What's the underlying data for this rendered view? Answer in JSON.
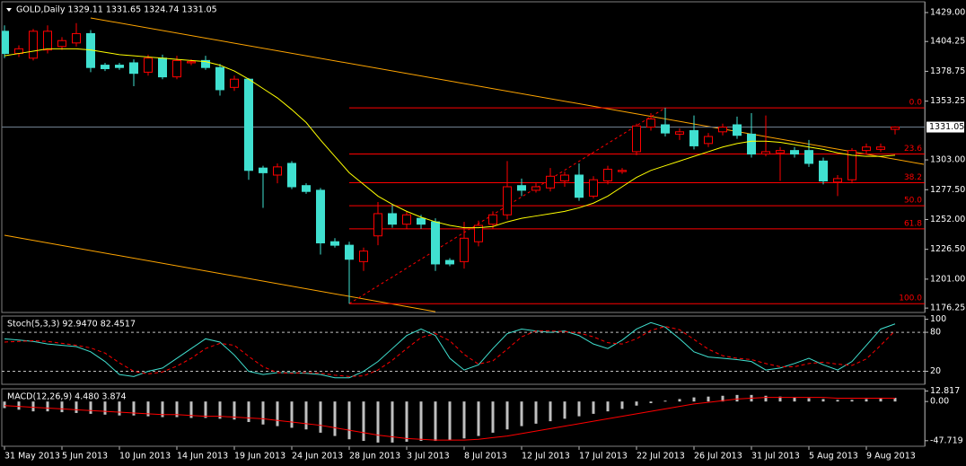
{
  "chart_data": [
    {
      "type": "candlestick",
      "title": "GOLD,Daily  1329.11 1331.65 1324.74 1331.05",
      "categories": [
        "31 May 2013",
        null,
        null,
        null,
        "5 Jun 2013",
        null,
        null,
        null,
        "10 Jun 2013",
        null,
        null,
        null,
        "14 Jun 2013",
        null,
        null,
        null,
        "19 Jun 2013",
        null,
        null,
        null,
        "24 Jun 2013",
        null,
        null,
        null,
        "28 Jun 2013",
        null,
        null,
        null,
        "3 Jul 2013",
        null,
        null,
        null,
        "8 Jul 2013",
        null,
        null,
        null,
        "12 Jul 2013",
        null,
        null,
        null,
        "17 Jul 2013",
        null,
        null,
        null,
        "22 Jul 2013",
        null,
        null,
        null,
        "26 Jul 2013",
        null,
        null,
        null,
        "31 Jul 2013",
        null,
        null,
        null,
        "5 Aug 2013",
        null,
        null,
        null,
        "9 Aug 2013",
        null,
        null
      ],
      "open": [
        1413,
        1394,
        1390,
        1397,
        1400,
        1403,
        1411,
        1384,
        1384,
        1386,
        1378,
        1390,
        1374,
        1386,
        1388,
        1382,
        1365,
        1372,
        1296,
        1290,
        1300,
        1281,
        1277,
        1233,
        1230,
        1216,
        1238,
        1257,
        1248,
        1253,
        1250,
        1217,
        1216,
        1233,
        1248,
        1256,
        1281,
        1277,
        1279,
        1285,
        1290,
        1272,
        1285,
        1293,
        1310,
        1331,
        1333,
        1325,
        1328,
        1317,
        1327,
        1333,
        1325,
        1308,
        1309,
        1311,
        1311,
        1302,
        1284,
        1286,
        1311,
        1312,
        1329.11
      ],
      "high": [
        1418,
        1401,
        1415,
        1418,
        1408,
        1420,
        1414,
        1386,
        1386,
        1389,
        1393,
        1393,
        1392,
        1389,
        1392,
        1385,
        1375,
        1373,
        1298,
        1300,
        1302,
        1283,
        1279,
        1236,
        1233,
        1228,
        1267,
        1265,
        1259,
        1256,
        1253,
        1219,
        1250,
        1251,
        1259,
        1302,
        1287,
        1283,
        1296,
        1293,
        1300,
        1289,
        1298,
        1296,
        1334,
        1343,
        1347.5,
        1330,
        1341,
        1326,
        1334,
        1340,
        1343,
        1341,
        1314,
        1314,
        1320,
        1305,
        1290,
        1313,
        1317,
        1317,
        1331.65
      ],
      "low": [
        1390,
        1391,
        1388,
        1394,
        1397,
        1400,
        1378,
        1379,
        1380,
        1366,
        1375,
        1372,
        1372,
        1384,
        1380,
        1358,
        1362,
        1286,
        1262,
        1283,
        1278,
        1274,
        1222,
        1228,
        1180,
        1208,
        1230,
        1245,
        1244,
        1244,
        1208,
        1212,
        1210,
        1229,
        1244,
        1252,
        1272,
        1275,
        1276,
        1280,
        1268,
        1270,
        1282,
        1291,
        1307,
        1328,
        1323,
        1320,
        1312,
        1314,
        1324,
        1321,
        1305,
        1306,
        1285,
        1305,
        1297,
        1282,
        1272,
        1283,
        1308,
        1310,
        1324.74
      ],
      "close": [
        1394,
        1398,
        1413,
        1413,
        1405,
        1411,
        1382,
        1381,
        1382,
        1377,
        1390,
        1374,
        1388,
        1387,
        1382,
        1363,
        1372,
        1294,
        1292,
        1297,
        1280,
        1276,
        1232,
        1230,
        1218,
        1225,
        1257,
        1248,
        1256,
        1248,
        1214,
        1214,
        1236,
        1247,
        1256,
        1280,
        1277,
        1280,
        1289,
        1290,
        1271,
        1286,
        1295,
        1294,
        1332,
        1338,
        1326,
        1327,
        1315,
        1323,
        1331,
        1324,
        1308,
        1310,
        1311,
        1308,
        1300,
        1285,
        1287,
        1311,
        1314,
        1314,
        1331.05
      ],
      "up_color": "#ff0000",
      "down_color": "#40e0d0",
      "series": [
        {
          "color": "#ffff00",
          "values": [
            1392,
            1394,
            1396,
            1398,
            1398,
            1398,
            1397,
            1395,
            1393,
            1392,
            1391,
            1390,
            1389,
            1388,
            1387,
            1384,
            1379,
            1372,
            1364,
            1356,
            1346,
            1335,
            1320,
            1306,
            1292,
            1282,
            1272,
            1265,
            1259,
            1254,
            1250,
            1247,
            1245,
            1245,
            1246,
            1250,
            1253,
            1255,
            1257,
            1259,
            1262,
            1266,
            1272,
            1280,
            1288,
            1294,
            1298,
            1302,
            1306,
            1310,
            1314,
            1317,
            1319,
            1319,
            1318,
            1316,
            1314,
            1312,
            1309,
            1307,
            1306,
            1306,
            1307
          ]
        }
      ],
      "trendlines": [
        {
          "color": "#ffa500",
          "x": [
            6,
            64
          ],
          "y": [
            1424.4,
            1299.2
          ]
        },
        {
          "color": "#ffa500",
          "x": [
            0,
            30
          ],
          "y": [
            1238.5,
            1173.2
          ]
        }
      ],
      "fibo": {
        "color": "#ff0000",
        "x": [
          24,
          46
        ],
        "y": [
          1180,
          1347.5
        ],
        "levels": [
          {
            "value": 1347.5,
            "label": "0.0"
          },
          {
            "value": 1308,
            "label": "23.6"
          },
          {
            "value": 1283.5,
            "label": "38.2"
          },
          {
            "value": 1263.75,
            "label": "50.0"
          },
          {
            "value": 1244,
            "label": "61.8"
          },
          {
            "value": 1180,
            "label": "100.0"
          }
        ]
      },
      "price_line": 1331.05,
      "ylim": [
        1172.5,
        1438.2
      ],
      "yticks": [
        {
          "value": 1429,
          "label": "1429.00"
        },
        1404.25,
        1378.75,
        1353.25,
        {
          "value": 1303,
          "label": "1303.00"
        },
        {
          "value": 1277.5,
          "label": "1277.50"
        },
        {
          "value": 1252,
          "label": "1252.00"
        },
        {
          "value": 1226.5,
          "label": "1226.50"
        },
        {
          "value": 1201,
          "label": "1201.00"
        },
        1176.25
      ]
    },
    {
      "type": "line",
      "title": "Stoch(5,3,3) 92.9470 82.4517",
      "series": [
        {
          "color": "#40e0d0",
          "values": [
            70,
            68,
            66,
            62,
            60,
            58,
            50,
            35,
            15,
            12,
            20,
            25,
            40,
            55,
            70,
            65,
            45,
            20,
            15,
            18,
            18,
            17,
            15,
            10,
            10,
            20,
            35,
            55,
            75,
            85,
            75,
            40,
            22,
            30,
            55,
            78,
            85,
            82,
            80,
            82,
            75,
            62,
            55,
            68,
            85,
            95,
            88,
            70,
            50,
            42,
            40,
            38,
            35,
            22,
            25,
            32,
            40,
            30,
            22,
            35,
            60,
            85,
            92.947
          ]
        },
        {
          "color": "#ff0000",
          "dashed": true,
          "values": [
            65,
            66,
            67,
            66,
            63,
            60,
            56,
            48,
            33,
            20,
            16,
            19,
            28,
            40,
            55,
            63,
            60,
            43,
            27,
            18,
            17,
            18,
            17,
            14,
            12,
            13,
            22,
            37,
            55,
            72,
            78,
            67,
            46,
            31,
            36,
            54,
            73,
            82,
            82,
            81,
            79,
            73,
            64,
            62,
            70,
            83,
            89,
            84,
            69,
            54,
            44,
            40,
            38,
            32,
            27,
            27,
            32,
            34,
            31,
            29,
            39,
            60,
            82.4517
          ]
        }
      ],
      "levels": [
        80,
        20
      ],
      "ylim": [
        0,
        105
      ],
      "yticks": [
        100,
        80,
        20
      ]
    },
    {
      "type": "bar",
      "title": "MACD(12,26,9) 4.480 3.874",
      "values": [
        -8,
        -10,
        -12,
        -12,
        -13,
        -14,
        -15,
        -16,
        -17,
        -17,
        -18,
        -19,
        -19,
        -20,
        -20,
        -21,
        -22,
        -25,
        -28,
        -30,
        -32,
        -34,
        -38,
        -42,
        -46,
        -48,
        -50,
        -50,
        -49,
        -48,
        -48,
        -47,
        -45,
        -42,
        -38,
        -34,
        -30,
        -27,
        -24,
        -21,
        -18,
        -15,
        -12,
        -9,
        -5,
        -2,
        1,
        3,
        5,
        6,
        7,
        8,
        8,
        7,
        6,
        5,
        4,
        3,
        2,
        2,
        3,
        4,
        4.48
      ],
      "color": "#c0c0c0",
      "series": [
        {
          "color": "#ff0000",
          "values": [
            -5,
            -6,
            -7,
            -8,
            -9,
            -10,
            -11,
            -12,
            -13,
            -14,
            -15,
            -16,
            -16,
            -17,
            -18,
            -18,
            -19,
            -20,
            -21,
            -23,
            -25,
            -27,
            -29,
            -32,
            -35,
            -38,
            -41,
            -43,
            -45,
            -46,
            -47,
            -47,
            -47,
            -46,
            -44,
            -42,
            -39,
            -36,
            -33,
            -30,
            -27,
            -24,
            -21,
            -18,
            -15,
            -12,
            -9,
            -6,
            -3,
            -1,
            1,
            3,
            4,
            5,
            5,
            5,
            5,
            5,
            4,
            4,
            4,
            4,
            3.874
          ]
        }
      ],
      "ylim": [
        -54.5,
        15.5
      ],
      "yticks": [
        12.817,
        {
          "value": 0,
          "label": "0.00"
        },
        -47.719
      ]
    }
  ]
}
